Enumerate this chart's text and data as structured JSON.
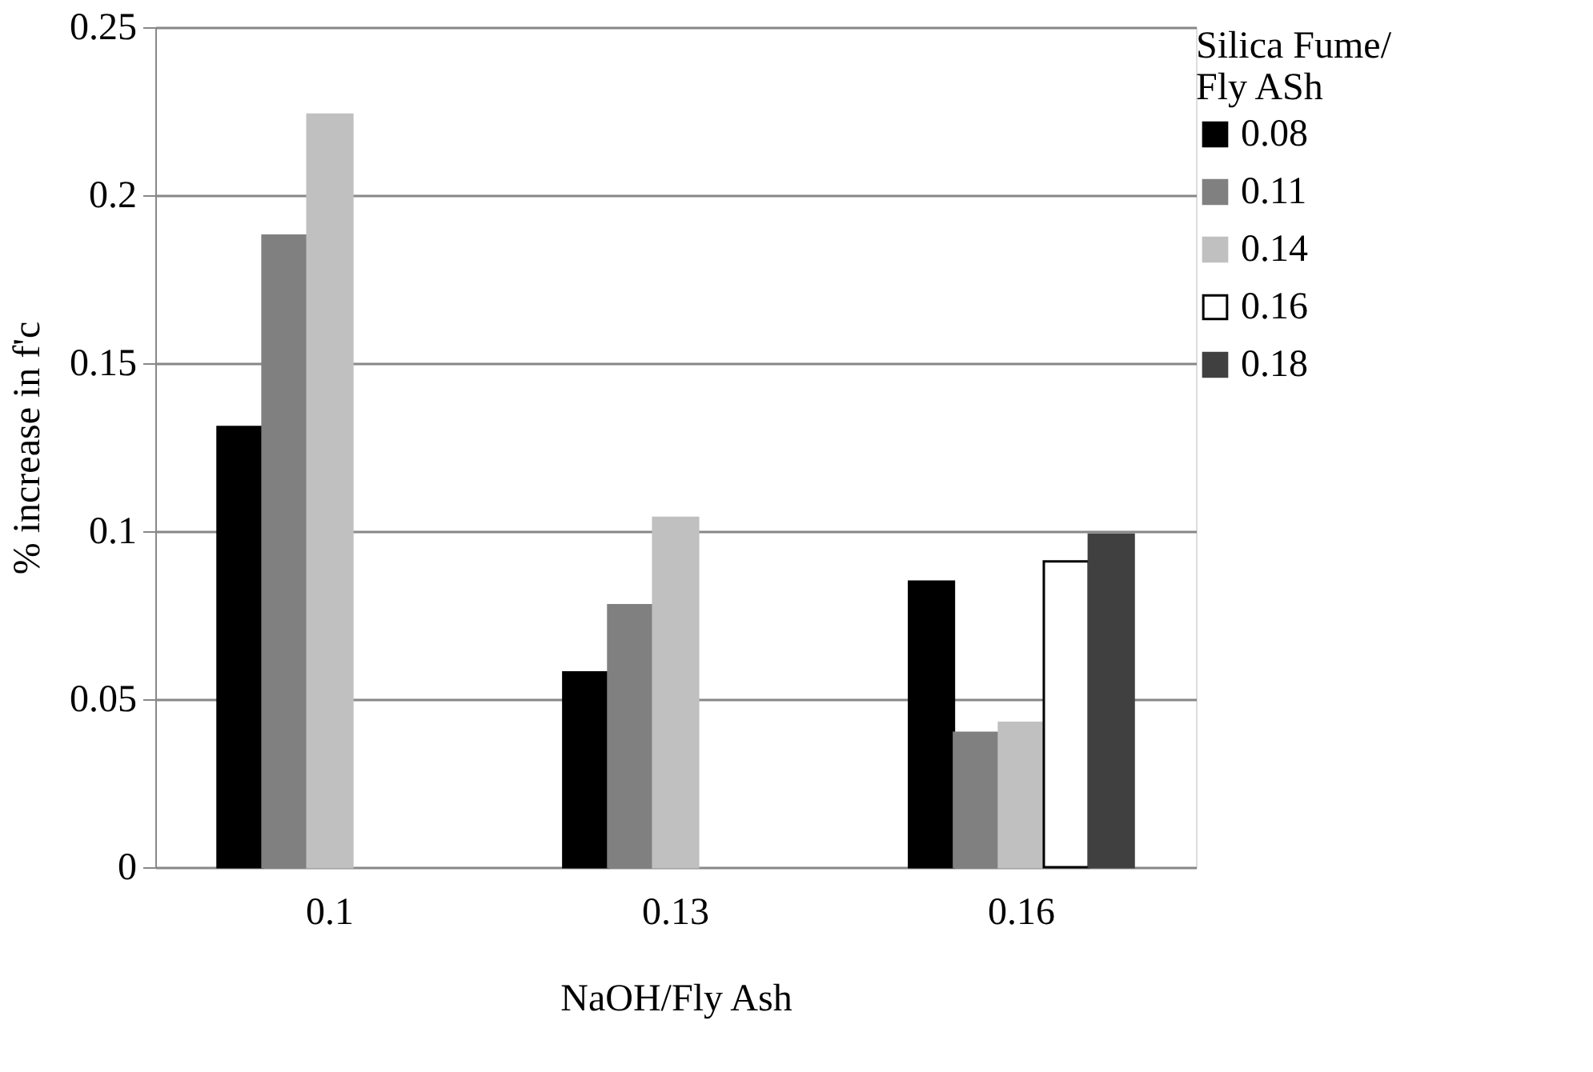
{
  "chart_data": {
    "type": "bar",
    "xlabel": "NaOH/Fly Ash",
    "ylabel": "% increase in f'c",
    "legend_title": "Silica Fume/ Fly ASh",
    "categories": [
      "0.1",
      "0.13",
      "0.16"
    ],
    "series": [
      {
        "name": "0.08",
        "color": "#000000",
        "values": [
          0.131,
          0.058,
          0.085
        ]
      },
      {
        "name": "0.11",
        "color": "#808080",
        "values": [
          0.188,
          0.078,
          0.04
        ]
      },
      {
        "name": "0.14",
        "color": "#c0c0c0",
        "values": [
          0.224,
          0.104,
          0.043
        ]
      },
      {
        "name": "0.16",
        "color": "#ffffff",
        "values": [
          null,
          null,
          0.091
        ]
      },
      {
        "name": "0.18",
        "color": "#404040",
        "values": [
          null,
          null,
          0.099
        ]
      }
    ],
    "ylim": [
      0,
      0.25
    ],
    "yticks": [
      0,
      0.05,
      0.1,
      0.15,
      0.2,
      0.25
    ],
    "grid": "y",
    "legend": "right"
  }
}
